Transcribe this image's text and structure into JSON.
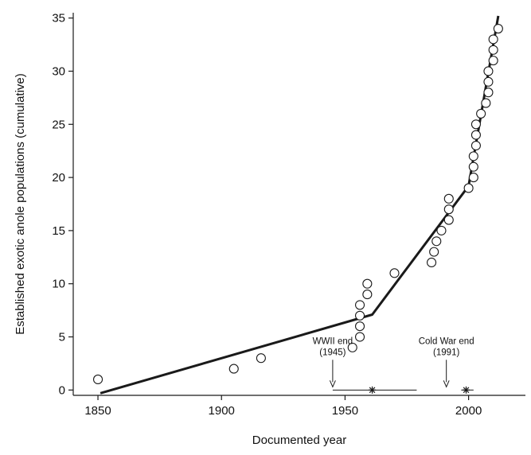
{
  "chart_data": {
    "type": "scatter",
    "title": "",
    "xlabel": "Documented year",
    "ylabel": "Established exotic anole populations (cumulative)",
    "xlim": [
      1840,
      2023
    ],
    "ylim": [
      -0.5,
      35.5
    ],
    "xticks": [
      1850,
      1900,
      1950,
      2000
    ],
    "yticks": [
      0,
      5,
      10,
      15,
      20,
      25,
      30,
      35
    ],
    "grid": false,
    "legend": "none",
    "points": [
      {
        "x": 1850,
        "y": 1
      },
      {
        "x": 1905,
        "y": 2
      },
      {
        "x": 1916,
        "y": 3
      },
      {
        "x": 1953,
        "y": 4
      },
      {
        "x": 1956,
        "y": 5
      },
      {
        "x": 1956,
        "y": 6
      },
      {
        "x": 1956,
        "y": 7
      },
      {
        "x": 1956,
        "y": 8
      },
      {
        "x": 1959,
        "y": 9
      },
      {
        "x": 1959,
        "y": 10
      },
      {
        "x": 1970,
        "y": 11
      },
      {
        "x": 1985,
        "y": 12
      },
      {
        "x": 1986,
        "y": 13
      },
      {
        "x": 1987,
        "y": 14
      },
      {
        "x": 1989,
        "y": 15
      },
      {
        "x": 1992,
        "y": 16
      },
      {
        "x": 1992,
        "y": 17
      },
      {
        "x": 1992,
        "y": 18
      },
      {
        "x": 2000,
        "y": 19
      },
      {
        "x": 2002,
        "y": 20
      },
      {
        "x": 2002,
        "y": 21
      },
      {
        "x": 2002,
        "y": 22
      },
      {
        "x": 2003,
        "y": 23
      },
      {
        "x": 2003,
        "y": 24
      },
      {
        "x": 2003,
        "y": 25
      },
      {
        "x": 2005,
        "y": 26
      },
      {
        "x": 2007,
        "y": 27
      },
      {
        "x": 2008,
        "y": 28
      },
      {
        "x": 2008,
        "y": 29
      },
      {
        "x": 2008,
        "y": 30
      },
      {
        "x": 2010,
        "y": 31
      },
      {
        "x": 2010,
        "y": 32
      },
      {
        "x": 2010,
        "y": 33
      },
      {
        "x": 2012,
        "y": 34
      }
    ],
    "fit_line": [
      {
        "x": 1851,
        "y": -0.3
      },
      {
        "x": 1961,
        "y": 7.1
      },
      {
        "x": 2000,
        "y": 19.2
      },
      {
        "x": 2012,
        "y": 35.2
      }
    ],
    "breakpoint_ranges": [
      {
        "center": 1961,
        "from": 1945,
        "to": 1979
      },
      {
        "center": 1999,
        "from": 1997,
        "to": 2002
      }
    ],
    "annotations": [
      {
        "label": "WWII end",
        "sub": "(1945)",
        "x": 1945
      },
      {
        "label": "Cold War end",
        "sub": "(1991)",
        "x": 1991
      }
    ],
    "colors": {
      "line": "#1a1a1a",
      "marker": "#1a1a1a"
    }
  }
}
